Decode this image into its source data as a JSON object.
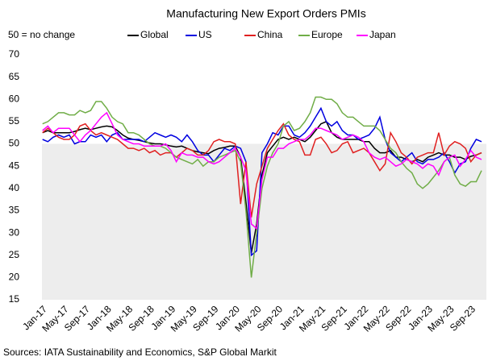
{
  "chart_data": {
    "type": "line",
    "title": "Manufacturing New Export Orders PMIs",
    "annotation": "50 = no change",
    "source": "Sources: IATA Sustainability and Economics, S&P Global Markit",
    "shaded_below": 50,
    "shade_color": "#ededed",
    "categories": [
      "Jan-17",
      null,
      null,
      null,
      "May-17",
      null,
      null,
      null,
      "Sep-17",
      null,
      null,
      null,
      "Jan-18",
      null,
      null,
      null,
      "May-18",
      null,
      null,
      null,
      "Sep-18",
      null,
      null,
      null,
      "Jan-19",
      null,
      null,
      null,
      "May-19",
      null,
      null,
      null,
      "Sep-19",
      null,
      null,
      null,
      "Jan-20",
      null,
      null,
      null,
      "May-20",
      null,
      null,
      null,
      "Sep-20",
      null,
      null,
      null,
      "Jan-21",
      null,
      null,
      null,
      "May-21",
      null,
      null,
      null,
      "Sep-21",
      null,
      null,
      null,
      "Jan-22",
      null,
      null,
      null,
      "May-22",
      null,
      null,
      null,
      "Sep-22",
      null,
      null,
      null,
      "Jan-23",
      null,
      null,
      null,
      "May-23",
      null,
      null,
      null,
      "Sep-23",
      null,
      null
    ],
    "ylim": [
      15,
      70
    ],
    "yticks": [
      15,
      20,
      25,
      30,
      35,
      40,
      45,
      50,
      55,
      60,
      65,
      70
    ],
    "series": [
      {
        "name": "Global",
        "color": "#000000",
        "values": [
          52.5,
          53,
          52.5,
          52.5,
          52.5,
          52.5,
          52.8,
          53.2,
          53.5,
          53.2,
          53.5,
          53.8,
          54,
          53.8,
          53,
          52,
          51.3,
          51,
          50.8,
          50.5,
          50.2,
          50,
          50,
          49.8,
          49.5,
          49.3,
          49.5,
          49,
          48.5,
          48.2,
          48,
          47.8,
          48.5,
          49,
          49.2,
          49.5,
          49.5,
          47,
          37,
          25.5,
          32,
          43,
          48,
          49.5,
          51,
          51.5,
          51,
          51.5,
          51,
          50.5,
          51.5,
          53,
          54.5,
          55,
          52.5,
          51.5,
          51,
          51,
          51,
          51,
          50.5,
          50.5,
          49,
          48,
          48,
          48.5,
          47,
          47,
          46.5,
          46,
          46.5,
          46,
          47,
          47.5,
          48,
          47.5,
          47.5,
          47,
          47,
          46.5,
          47.2,
          47.5,
          48
        ]
      },
      {
        "name": "US",
        "color": "#0000e0",
        "values": [
          51,
          50.5,
          51.5,
          52,
          51.5,
          52,
          50,
          50.5,
          50.5,
          52,
          51.5,
          52,
          50.5,
          52,
          52.5,
          51,
          51,
          51,
          51,
          50.5,
          51.5,
          52.5,
          52,
          51.5,
          52,
          51.5,
          50.5,
          52,
          50.5,
          48.5,
          47.5,
          47.5,
          46,
          47.5,
          49,
          48.5,
          49.5,
          49,
          46,
          25,
          26,
          48,
          50,
          52.5,
          52,
          54,
          54,
          52,
          51.5,
          52.5,
          54,
          56,
          58,
          55,
          54,
          55,
          53,
          52,
          52,
          51,
          51.5,
          52,
          53.5,
          56,
          51,
          48,
          47,
          46,
          47,
          48,
          46,
          45.5,
          46.5,
          46.5,
          47,
          48,
          46,
          43.5,
          45.5,
          46,
          49,
          51,
          50.5
        ]
      },
      {
        "name": "China",
        "color": "#e02020",
        "values": [
          52.5,
          53.5,
          52.5,
          51.5,
          51,
          51,
          52,
          54,
          54.5,
          53,
          52,
          52.5,
          52,
          51.5,
          51,
          50,
          49,
          49,
          48.5,
          49,
          48,
          48.5,
          47.5,
          48,
          48,
          47,
          48,
          49,
          48.5,
          47.5,
          47.5,
          48.5,
          50.5,
          51,
          50.5,
          50.5,
          50,
          36.5,
          46,
          33.5,
          41,
          45,
          49,
          51,
          53,
          54.5,
          52,
          51,
          50.5,
          47.5,
          47.5,
          51,
          51.5,
          50,
          48,
          48.5,
          50,
          50.5,
          48,
          48.5,
          49,
          48,
          46,
          44,
          45.5,
          52.5,
          50.5,
          48,
          47,
          45.5,
          47,
          47.5,
          48,
          48,
          52.5,
          47.5,
          49.5,
          50.5,
          50,
          49,
          46,
          47.5,
          48
        ]
      },
      {
        "name": "Europe",
        "color": "#70ad47",
        "values": [
          54.5,
          55,
          56,
          57,
          57,
          56.5,
          56.5,
          57.5,
          57,
          57.5,
          59.5,
          59.5,
          58,
          56,
          55,
          54.5,
          52.5,
          52.5,
          52,
          51,
          50,
          49.5,
          49.5,
          49,
          48,
          47,
          46.5,
          46,
          45.5,
          46.5,
          45,
          46,
          46,
          47,
          47.5,
          48,
          48.5,
          46,
          35,
          20,
          30,
          40,
          45,
          48,
          50,
          54,
          55,
          53,
          53.5,
          55,
          57,
          60.5,
          60.5,
          60,
          60,
          59,
          57,
          56,
          56,
          55,
          54,
          54,
          54,
          53,
          51,
          49,
          48,
          46,
          44.5,
          43.5,
          41,
          40,
          41,
          42.5,
          44,
          46,
          47,
          43,
          41,
          40.5,
          41.5,
          41.5,
          44
        ]
      },
      {
        "name": "Japan",
        "color": "#ff00ff",
        "values": [
          53,
          54,
          52.5,
          53.5,
          53.5,
          53.5,
          52,
          50.5,
          52,
          53,
          54.5,
          56,
          57,
          54.5,
          52,
          51,
          50.5,
          50,
          50,
          49.5,
          49.5,
          49.5,
          49.5,
          50,
          48.5,
          46,
          48,
          47.5,
          47.5,
          47,
          47,
          46,
          45.5,
          46,
          47,
          48,
          49,
          47,
          44,
          32,
          31,
          42,
          47,
          47,
          49,
          49,
          50,
          50.5,
          51,
          51,
          52,
          53.5,
          53.5,
          53,
          52.5,
          52,
          51,
          51.5,
          52,
          51.5,
          50.5,
          48,
          47,
          46.5,
          47,
          46,
          45,
          45.5,
          46.5,
          46,
          45.5,
          44.5,
          45.5,
          45,
          43,
          46,
          47,
          47.5,
          45,
          46.5,
          48.5,
          47,
          46.5
        ]
      }
    ]
  }
}
